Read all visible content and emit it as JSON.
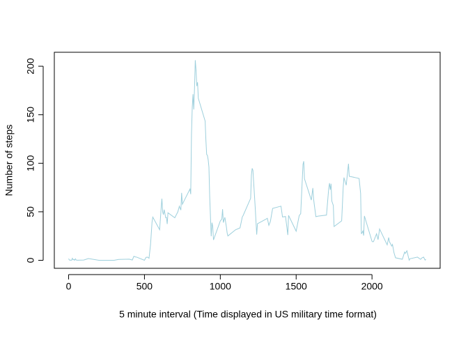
{
  "chart_data": {
    "type": "line",
    "x_label": "5 minute interval (Time displayed in US military time format)",
    "y_label": "Number of steps",
    "x": [
      0,
      5,
      10,
      15,
      20,
      25,
      30,
      35,
      40,
      45,
      50,
      55,
      100,
      130,
      200,
      230,
      300,
      330,
      400,
      420,
      430,
      440,
      450,
      500,
      510,
      520,
      530,
      540,
      550,
      555,
      600,
      610,
      615,
      620,
      625,
      630,
      640,
      645,
      650,
      655,
      700,
      720,
      730,
      740,
      745,
      750,
      800,
      805,
      810,
      815,
      820,
      825,
      830,
      835,
      840,
      845,
      850,
      855,
      900,
      905,
      910,
      915,
      920,
      925,
      930,
      935,
      940,
      945,
      950,
      955,
      1000,
      1010,
      1015,
      1020,
      1030,
      1040,
      1045,
      1050,
      1100,
      1130,
      1145,
      1150,
      1200,
      1205,
      1210,
      1215,
      1230,
      1240,
      1245,
      1300,
      1310,
      1320,
      1330,
      1345,
      1400,
      1410,
      1430,
      1445,
      1450,
      1500,
      1520,
      1530,
      1545,
      1550,
      1555,
      1600,
      1610,
      1615,
      1620,
      1630,
      1645,
      1700,
      1715,
      1720,
      1725,
      1730,
      1735,
      1745,
      1750,
      1800,
      1810,
      1815,
      1830,
      1845,
      1850,
      1900,
      1915,
      1925,
      1930,
      1940,
      1945,
      1950,
      2000,
      2005,
      2010,
      2030,
      2040,
      2050,
      2100,
      2110,
      2115,
      2130,
      2135,
      2145,
      2155,
      2200,
      2215,
      2220,
      2230,
      2245,
      2250,
      2300,
      2320,
      2330,
      2340,
      2350,
      2355
    ],
    "series": [
      {
        "color": "#9dcfdc",
        "values": [
          1.7,
          0.3,
          0.1,
          0.2,
          0.1,
          2.1,
          0.5,
          0.9,
          0,
          1.5,
          0.3,
          0.1,
          0.3,
          1.8,
          0,
          0,
          0,
          0.9,
          1.2,
          0.3,
          4.1,
          3.5,
          3.2,
          0,
          3,
          3.3,
          2.1,
          16,
          39.5,
          44.5,
          31.5,
          53.8,
          63.5,
          50,
          47.1,
          52.2,
          44,
          44.2,
          37.4,
          49,
          43.8,
          49.9,
          55.7,
          51.8,
          69.5,
          57.8,
          73.4,
          68.2,
          129.4,
          157.5,
          171.2,
          155.4,
          177.3,
          206.2,
          195.9,
          179.6,
          183.4,
          167,
          143.5,
          124,
          109.1,
          108.1,
          103.7,
          96,
          66.2,
          45.2,
          24.8,
          38.8,
          35,
          21,
          40.6,
          42.4,
          52.7,
          38.9,
          44.3,
          34.5,
          28.3,
          25.1,
          31.4,
          33.4,
          44.7,
          46,
          63.9,
          87.7,
          94.8,
          92.8,
          54.5,
          26.5,
          37.7,
          42.3,
          43.3,
          36.1,
          40,
          53.5,
          55.8,
          44.7,
          45.1,
          26.1,
          46.3,
          30,
          46,
          48.1,
          98.7,
          102.1,
          83.9,
          62.1,
          74.5,
          63.2,
          56.9,
          45,
          45.5,
          46.6,
          74.7,
          79.5,
          72.7,
          78.9,
          61.1,
          56.5,
          34.8,
          40.7,
          74.7,
          85.3,
          77.4,
          99.5,
          86.6,
          84.9,
          84.3,
          68.9,
          27.2,
          30.2,
          25.5,
          45.7,
          19.6,
          19,
          19.3,
          27.3,
          21.3,
          32.3,
          15.9,
          23.5,
          19.2,
          14.7,
          16.3,
          7.8,
          2.6,
          1.1,
          8.5,
          7.1,
          9.8,
          0.1,
          1.6,
          3.3,
          1,
          2.6,
          3.3,
          0.2,
          1.1
        ]
      }
    ],
    "xlim": [
      -94.2,
      2449.2
    ],
    "ylim": [
      -8.25,
      214.4
    ],
    "xticks": [
      0,
      500,
      1000,
      1500,
      2000
    ],
    "yticks": [
      0,
      50,
      100,
      150,
      200
    ]
  }
}
